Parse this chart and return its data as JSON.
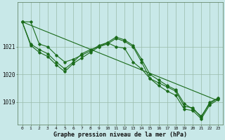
{
  "title": "Graphe pression niveau de la mer (hPa)",
  "bg_color": "#c8e8e8",
  "plot_bg_color": "#c8e8e8",
  "line_color": "#1a6b1a",
  "grid_color": "#99bbaa",
  "x_labels": [
    "0",
    "1",
    "2",
    "3",
    "4",
    "5",
    "6",
    "7",
    "8",
    "9",
    "10",
    "11",
    "12",
    "13",
    "14",
    "15",
    "16",
    "17",
    "18",
    "19",
    "20",
    "21",
    "22",
    "23"
  ],
  "ylim": [
    1018.2,
    1022.6
  ],
  "yticks": [
    1019,
    1020,
    1021
  ],
  "series": [
    [
      1021.9,
      1021.9,
      1021.1,
      1021.0,
      1020.7,
      1020.45,
      1020.55,
      1020.7,
      1020.85,
      1021.05,
      1021.15,
      1021.35,
      1021.25,
      1021.05,
      1020.55,
      1020.0,
      1019.8,
      1019.6,
      1019.45,
      1018.95,
      1018.75,
      1018.5,
      1018.95,
      1019.15
    ],
    [
      1021.9,
      1021.1,
      1020.9,
      1020.75,
      1020.45,
      1020.2,
      1020.45,
      1020.75,
      1020.9,
      1021.0,
      1021.1,
      1021.3,
      1021.2,
      1021.0,
      1020.45,
      1019.85,
      1019.7,
      1019.55,
      1019.4,
      1018.85,
      1018.8,
      1018.45,
      1019.0,
      1019.15
    ],
    [
      1021.9,
      1021.05,
      1020.8,
      1020.65,
      1020.35,
      1020.1,
      1020.4,
      1020.6,
      1020.8,
      1021.0,
      1021.15,
      1021.0,
      1020.95,
      1020.45,
      1020.2,
      1019.85,
      1019.6,
      1019.4,
      1019.25,
      1018.75,
      1018.7,
      1018.4,
      1018.9,
      1019.1
    ]
  ],
  "straight_line": [
    1021.9,
    1019.05
  ]
}
